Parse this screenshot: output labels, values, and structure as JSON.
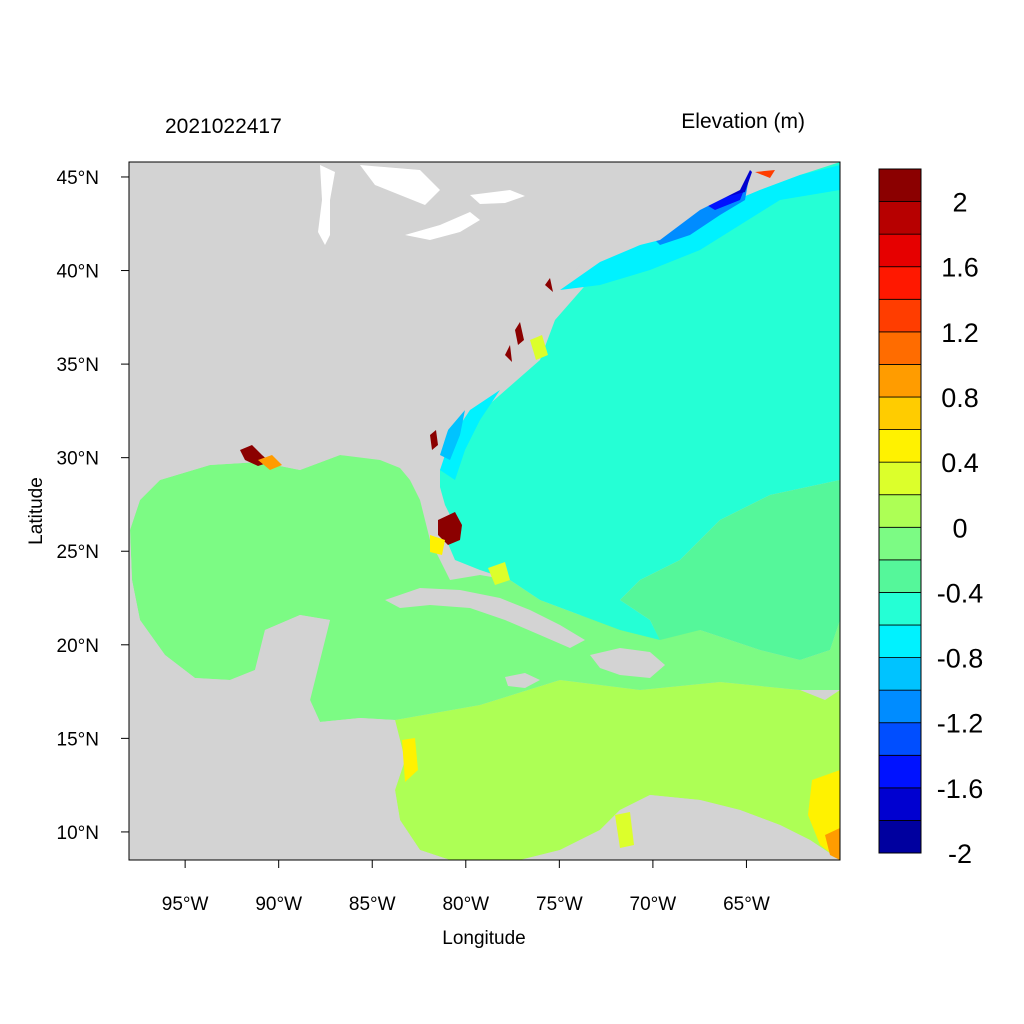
{
  "header": {
    "timestamp": "2021022417",
    "variable_label": "Elevation (m)"
  },
  "axes": {
    "xlabel": "Longitude",
    "ylabel": "Latitude",
    "x_ticks": [
      {
        "value": -95,
        "label": "95°W"
      },
      {
        "value": -90,
        "label": "90°W"
      },
      {
        "value": -85,
        "label": "85°W"
      },
      {
        "value": -80,
        "label": "80°W"
      },
      {
        "value": -75,
        "label": "75°W"
      },
      {
        "value": -70,
        "label": "70°W"
      },
      {
        "value": -65,
        "label": "65°W"
      }
    ],
    "y_ticks": [
      {
        "value": 45,
        "label": "45°N"
      },
      {
        "value": 40,
        "label": "40°N"
      },
      {
        "value": 35,
        "label": "35°N"
      },
      {
        "value": 30,
        "label": "30°N"
      },
      {
        "value": 25,
        "label": "25°N"
      },
      {
        "value": 20,
        "label": "20°N"
      },
      {
        "value": 15,
        "label": "15°N"
      },
      {
        "value": 10,
        "label": "10°N"
      }
    ],
    "lon_range": [
      -98,
      -60
    ],
    "lat_range": [
      8.5,
      45.8
    ]
  },
  "colorbar": {
    "bins": [
      {
        "color": "#00009f"
      },
      {
        "color": "#0000d0"
      },
      {
        "color": "#0012ff"
      },
      {
        "color": "#004eff"
      },
      {
        "color": "#008cff"
      },
      {
        "color": "#00c3ff"
      },
      {
        "color": "#00f2ff"
      },
      {
        "color": "#25ffd5"
      },
      {
        "color": "#55f79a"
      },
      {
        "color": "#7cfb84"
      },
      {
        "color": "#adff55"
      },
      {
        "color": "#dcff2b"
      },
      {
        "color": "#fff200"
      },
      {
        "color": "#ffcc00"
      },
      {
        "color": "#ff9c00"
      },
      {
        "color": "#ff6c00"
      },
      {
        "color": "#ff3d00"
      },
      {
        "color": "#ff1800"
      },
      {
        "color": "#e60000"
      },
      {
        "color": "#b70000"
      },
      {
        "color": "#8b0000"
      }
    ],
    "labels": [
      "2",
      "1.6",
      "1.2",
      "0.8",
      "0.4",
      "0",
      "-0.4",
      "-0.8",
      "-1.2",
      "-1.6",
      "-2"
    ]
  },
  "colors": {
    "land": "#d3d3d3",
    "gulf_caribbean_ocean": "#7cfb84",
    "atlantic_ocean": "#25ffd5",
    "southern_caribbean": "#adff55",
    "surge_high": "#8b0000",
    "surge_low": "#0000d0"
  }
}
